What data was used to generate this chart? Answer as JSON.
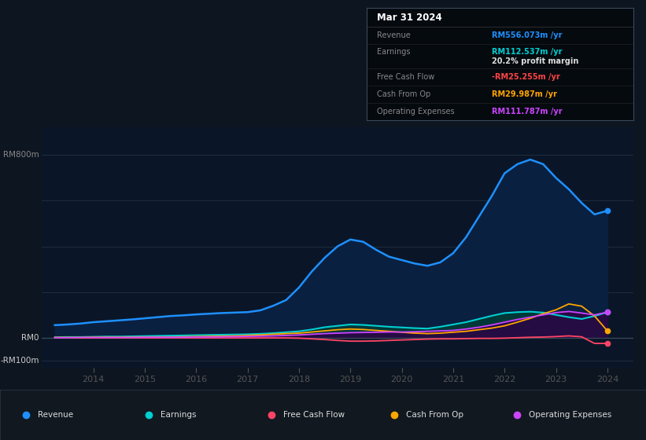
{
  "bg_color": "#0d1520",
  "plot_bg_color": "#0a1628",
  "grid_color": "#1e2d3d",
  "text_color": "#888888",
  "white": "#ffffff",
  "ylim_min": -130,
  "ylim_max": 920,
  "xlim_min": 2013.0,
  "xlim_max": 2024.5,
  "years": [
    2013.25,
    2013.5,
    2013.75,
    2014.0,
    2014.25,
    2014.5,
    2014.75,
    2015.0,
    2015.25,
    2015.5,
    2015.75,
    2016.0,
    2016.25,
    2016.5,
    2016.75,
    2017.0,
    2017.25,
    2017.5,
    2017.75,
    2018.0,
    2018.25,
    2018.5,
    2018.75,
    2019.0,
    2019.25,
    2019.5,
    2019.75,
    2020.0,
    2020.25,
    2020.5,
    2020.75,
    2021.0,
    2021.25,
    2021.5,
    2021.75,
    2022.0,
    2022.25,
    2022.5,
    2022.75,
    2023.0,
    2023.25,
    2023.5,
    2023.75,
    2024.0
  ],
  "revenue": [
    55,
    58,
    62,
    68,
    72,
    76,
    80,
    85,
    90,
    95,
    98,
    102,
    105,
    108,
    110,
    112,
    120,
    140,
    165,
    220,
    290,
    350,
    400,
    430,
    420,
    385,
    355,
    340,
    325,
    315,
    330,
    370,
    440,
    530,
    620,
    720,
    760,
    780,
    760,
    700,
    650,
    590,
    540,
    556
  ],
  "earnings": [
    2,
    3,
    3,
    4,
    5,
    5,
    6,
    7,
    8,
    9,
    10,
    11,
    12,
    13,
    14,
    15,
    17,
    20,
    24,
    28,
    36,
    46,
    52,
    58,
    56,
    52,
    48,
    45,
    42,
    40,
    48,
    58,
    68,
    82,
    96,
    108,
    112,
    114,
    110,
    100,
    90,
    82,
    95,
    112
  ],
  "free_cash_flow": [
    0,
    0,
    -1,
    -1,
    -1,
    -1,
    -1,
    -1,
    -1,
    -1,
    -1,
    -1,
    -1,
    -1,
    -1,
    -1,
    -1,
    -1,
    -1,
    -2,
    -5,
    -8,
    -12,
    -15,
    -15,
    -14,
    -12,
    -10,
    -8,
    -6,
    -5,
    -5,
    -4,
    -3,
    -3,
    -2,
    0,
    2,
    3,
    5,
    8,
    4,
    -25,
    -25
  ],
  "cash_from_op": [
    1,
    1,
    1,
    2,
    2,
    2,
    2,
    3,
    3,
    3,
    4,
    5,
    6,
    7,
    8,
    10,
    12,
    15,
    18,
    20,
    25,
    30,
    35,
    38,
    36,
    32,
    28,
    24,
    20,
    18,
    20,
    24,
    28,
    35,
    42,
    52,
    68,
    85,
    105,
    122,
    148,
    138,
    95,
    30
  ],
  "operating_expenses": [
    0,
    0,
    1,
    1,
    1,
    1,
    1,
    2,
    2,
    2,
    2,
    3,
    3,
    4,
    5,
    6,
    7,
    8,
    10,
    12,
    15,
    18,
    20,
    22,
    23,
    24,
    25,
    25,
    26,
    28,
    30,
    32,
    38,
    46,
    56,
    68,
    80,
    90,
    100,
    110,
    115,
    108,
    100,
    112
  ],
  "revenue_color": "#1e90ff",
  "earnings_color": "#00ced1",
  "fcf_color": "#ff4466",
  "cashop_color": "#ffa500",
  "opex_color": "#cc44ff",
  "revenue_fill": "#0a2040",
  "earnings_fill": "#003838",
  "opex_fill": "#2a0845",
  "xlabel_years": [
    "2014",
    "2015",
    "2016",
    "2017",
    "2018",
    "2019",
    "2020",
    "2021",
    "2022",
    "2023",
    "2024"
  ],
  "xlabel_year_pos": [
    2014,
    2015,
    2016,
    2017,
    2018,
    2019,
    2020,
    2021,
    2022,
    2023,
    2024
  ],
  "info_title": "Mar 31 2024",
  "info_rows": [
    {
      "label": "Revenue",
      "value": "RM556.073m /yr",
      "label_color": "#888888",
      "value_color": "#1e90ff",
      "sub": ""
    },
    {
      "label": "Earnings",
      "value": "RM112.537m /yr",
      "label_color": "#888888",
      "value_color": "#00ced1",
      "sub": "20.2% profit margin"
    },
    {
      "label": "Free Cash Flow",
      "value": "-RM25.255m /yr",
      "label_color": "#888888",
      "value_color": "#ff4444",
      "sub": ""
    },
    {
      "label": "Cash From Op",
      "value": "RM29.987m /yr",
      "label_color": "#888888",
      "value_color": "#ffa500",
      "sub": ""
    },
    {
      "label": "Operating Expenses",
      "value": "RM111.787m /yr",
      "label_color": "#888888",
      "value_color": "#cc44ff",
      "sub": ""
    }
  ],
  "legend_items": [
    {
      "label": "Revenue",
      "color": "#1e90ff"
    },
    {
      "label": "Earnings",
      "color": "#00ced1"
    },
    {
      "label": "Free Cash Flow",
      "color": "#ff4466"
    },
    {
      "label": "Cash From Op",
      "color": "#ffa500"
    },
    {
      "label": "Operating Expenses",
      "color": "#cc44ff"
    }
  ]
}
